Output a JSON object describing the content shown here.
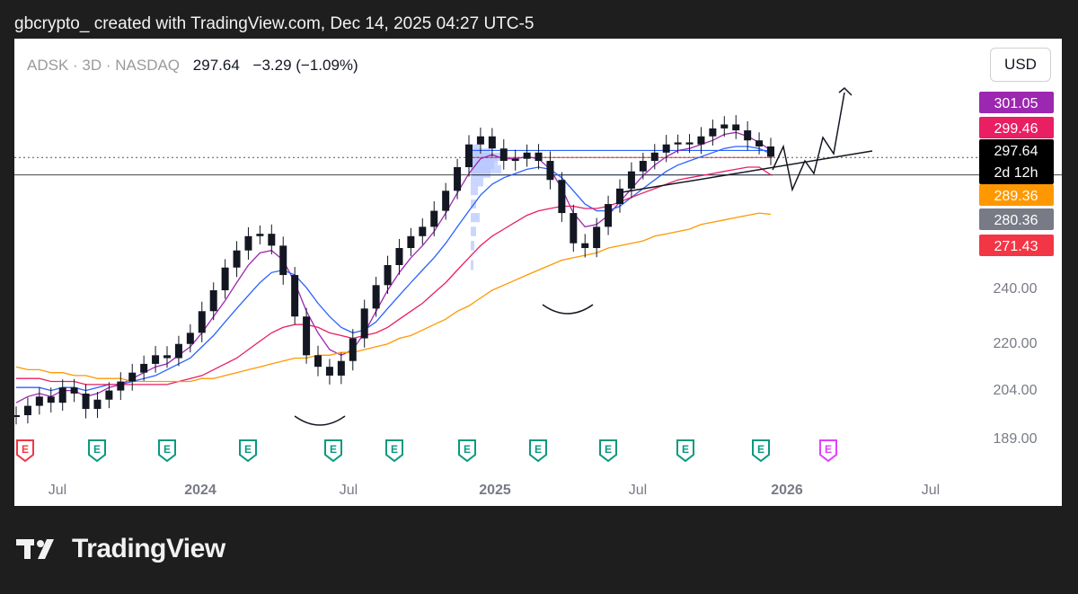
{
  "header": {
    "attribution": "gbcrypto_ created with TradingView.com, Dec 14, 2025 04:27 UTC-5"
  },
  "symbol": {
    "title": "ADSK · 3D · NASDAQ",
    "price": "297.64",
    "change": "−3.29 (−1.09%)"
  },
  "currency_button": "USD",
  "footer": {
    "brand": "TradingView",
    "logo_icon": "tradingview-logo-icon"
  },
  "colors": {
    "candle": "#131722",
    "ma_fast": "#9c27b0",
    "ma_blue": "#2962ff",
    "ma_red": "#e91e63",
    "ma_orange": "#ff9800",
    "ma_long": "#d32f2f",
    "earnings": "#089981",
    "earnings_future": "#e040fb",
    "volume_profile": "#b3c4ff"
  },
  "chart_data": {
    "type": "line",
    "instrument": "ADSK",
    "interval": "3D",
    "exchange": "NASDAQ",
    "x_ticks": [
      "Jul",
      "2024",
      "Jul",
      "2025",
      "Jul",
      "2026",
      "Jul"
    ],
    "y_ticks": [
      "240.00",
      "220.00",
      "204.00",
      "189.00"
    ],
    "price_scale": "log",
    "price_labels": [
      {
        "value": "301.05",
        "color": "#9c27b0"
      },
      {
        "value": "299.46",
        "color": "#e91e63"
      },
      {
        "value": "297.64",
        "sub": "2d 12h",
        "color": "#000000"
      },
      {
        "value": "289.36",
        "color": "#ff9800"
      },
      {
        "value": "280.36",
        "color": "#787b86"
      },
      {
        "value": "271.43",
        "color": "#f23645"
      }
    ],
    "series": [
      {
        "values": [
          196,
          199,
          202,
          200,
          205,
          203,
          198,
          201,
          204,
          207,
          210,
          213,
          216,
          215,
          220,
          224,
          232,
          240,
          249,
          256,
          262,
          263,
          258,
          246,
          230,
          216,
          212,
          209,
          214,
          222,
          233,
          242,
          250,
          257,
          262,
          266,
          273,
          282,
          293,
          304,
          308,
          302,
          296,
          297,
          300,
          296,
          287,
          272,
          259,
          257,
          266,
          276,
          283,
          291,
          296,
          300,
          304,
          305,
          304,
          308,
          312,
          314,
          311,
          306,
          303,
          298
        ]
      },
      {
        "values": [
          200,
          202,
          203,
          202,
          204,
          204,
          202,
          203,
          205,
          206,
          208,
          210,
          212,
          213,
          216,
          219,
          224,
          230,
          236,
          243,
          250,
          255,
          256,
          252,
          243,
          232,
          224,
          218,
          216,
          218,
          224,
          232,
          240,
          247,
          253,
          258,
          264,
          272,
          281,
          290,
          297,
          299,
          297,
          297,
          298,
          297,
          292,
          283,
          272,
          266,
          267,
          271,
          277,
          283,
          289,
          294,
          298,
          301,
          302,
          304,
          306,
          309,
          310,
          308,
          305,
          301.05
        ]
      },
      {
        "values": [
          205,
          205,
          205,
          204,
          205,
          205,
          204,
          205,
          206,
          206,
          207,
          208,
          209,
          211,
          213,
          215,
          219,
          223,
          228,
          233,
          238,
          243,
          247,
          248,
          246,
          241,
          235,
          230,
          226,
          224,
          225,
          228,
          233,
          238,
          243,
          248,
          253,
          259,
          266,
          273,
          280,
          285,
          288,
          290,
          292,
          293,
          292,
          288,
          282,
          276,
          273,
          273,
          275,
          279,
          283,
          287,
          291,
          294,
          296,
          298,
          300,
          302,
          303,
          303,
          302,
          299.46
        ]
      },
      {
        "values": [
          208,
          208,
          208,
          207,
          207,
          207,
          206,
          206,
          206,
          206,
          206,
          206,
          206,
          206,
          207,
          208,
          209,
          211,
          213,
          215,
          218,
          221,
          224,
          226,
          227,
          227,
          226,
          224,
          223,
          222,
          223,
          224,
          226,
          229,
          232,
          235,
          239,
          243,
          248,
          253,
          258,
          262,
          265,
          268,
          271,
          273,
          274,
          275,
          275,
          274,
          274,
          275,
          277,
          279,
          281,
          283,
          285,
          287,
          288,
          289,
          290,
          291,
          292,
          293,
          293,
          289.36
        ]
      },
      {
        "values": [
          212,
          211,
          211,
          210,
          210,
          209,
          209,
          208,
          208,
          208,
          207,
          207,
          207,
          207,
          207,
          207,
          208,
          208,
          209,
          210,
          211,
          212,
          213,
          214,
          215,
          215,
          216,
          216,
          217,
          217,
          218,
          219,
          220,
          222,
          223,
          225,
          227,
          229,
          232,
          234,
          237,
          240,
          242,
          244,
          246,
          248,
          250,
          252,
          253,
          254,
          255,
          257,
          258,
          259,
          260,
          262,
          263,
          264,
          265,
          267,
          268,
          269,
          270,
          271,
          272,
          271.43
        ]
      }
    ],
    "horizontal_levels": [
      297.64,
      289.36
    ],
    "range_box": {
      "high": 301.05,
      "mid": 297.64,
      "low": 289.36
    },
    "earnings_markers": [
      "E",
      "E",
      "E",
      "E",
      "E",
      "E",
      "E",
      "E",
      "E",
      "E",
      "E",
      "E"
    ]
  }
}
